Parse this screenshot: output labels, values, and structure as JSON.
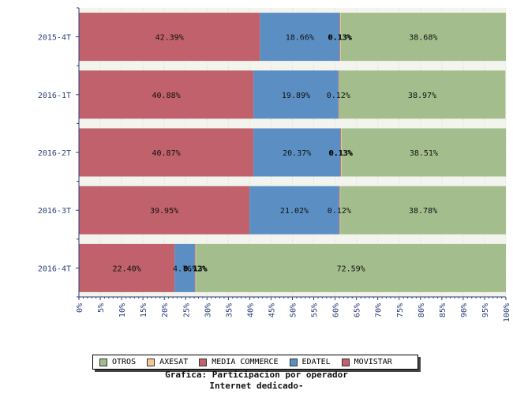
{
  "chart_data": {
    "type": "bar",
    "orientation": "horizontal",
    "stacked": true,
    "categories": [
      "2015-4T",
      "2016-1T",
      "2016-2T",
      "2016-3T",
      "2016-4T"
    ],
    "series": [
      {
        "name": "MOVISTAR",
        "color": "#c0616b",
        "values": [
          42.39,
          40.88,
          40.87,
          39.95,
          22.4
        ],
        "labels": [
          "42.39%",
          "40.88%",
          "40.87%",
          "39.95%",
          "22.40%"
        ]
      },
      {
        "name": "EDATEL",
        "color": "#5b8fc4",
        "values": [
          18.66,
          19.89,
          20.37,
          21.02,
          4.76
        ],
        "labels": [
          "18.66%",
          "19.89%",
          "20.37%",
          "21.02%",
          "4.76%"
        ]
      },
      {
        "name": "MEDIA COMMERCE",
        "color": "#c0616b",
        "values": [
          0.13,
          0.12,
          0.13,
          0.12,
          0.12
        ],
        "labels": [
          "0.13%",
          "0.12%",
          "0.13%",
          "0.12%",
          "0.12%"
        ]
      },
      {
        "name": "AXESAT",
        "color": "#f0c890",
        "values": [
          0.13,
          0.03,
          0.13,
          0.12,
          0.13
        ],
        "labels": [
          "0.13%",
          "",
          "0.13%",
          "",
          "0.13%"
        ]
      },
      {
        "name": "OTROS",
        "color": "#a3be8c",
        "values": [
          38.68,
          38.97,
          38.51,
          38.78,
          72.59
        ],
        "labels": [
          "38.68%",
          "38.97%",
          "38.51%",
          "38.78%",
          "72.59%"
        ]
      }
    ],
    "x_ticks": [
      "0%",
      "5%",
      "10%",
      "15%",
      "20%",
      "25%",
      "30%",
      "35%",
      "40%",
      "45%",
      "50%",
      "55%",
      "60%",
      "65%",
      "70%",
      "75%",
      "80%",
      "85%",
      "90%",
      "95%",
      "100%"
    ],
    "xlim": [
      0,
      100
    ],
    "legend": {
      "placement": "bottom",
      "entries": [
        {
          "name": "OTROS",
          "color": "#a3be8c"
        },
        {
          "name": "AXESAT",
          "color": "#f0c890"
        },
        {
          "name": "MEDIA COMMERCE",
          "color": "#c0616b"
        },
        {
          "name": "EDATEL",
          "color": "#5b8fc4"
        },
        {
          "name": "MOVISTAR",
          "color": "#c0616b"
        }
      ]
    },
    "title": "Grafica: Participacion por operador",
    "subtitle": "Internet dedicado-"
  }
}
